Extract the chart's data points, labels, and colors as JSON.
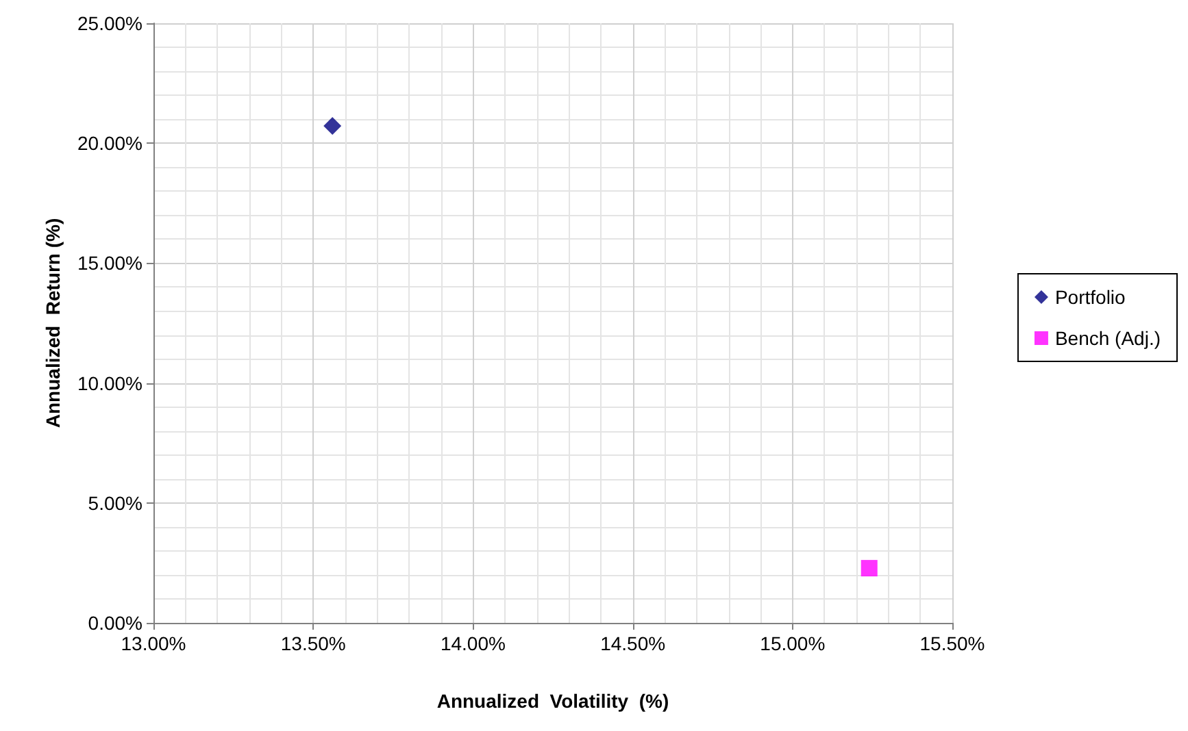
{
  "chart_data": {
    "type": "scatter",
    "xlabel": "Annualized  Volatility  (%)",
    "ylabel": "Annualized  Return (%)",
    "series": [
      {
        "name": "Portfolio",
        "color": "#000080",
        "marker": "diamond",
        "x": [
          13.56
        ],
        "values": [
          20.72
        ]
      },
      {
        "name": "Bench (Adj.)",
        "color": "#ff00ff",
        "marker": "square",
        "x": [
          15.24
        ],
        "values": [
          2.28
        ]
      }
    ],
    "xlim": [
      13,
      15.5
    ],
    "xticks": [
      {
        "value": 13,
        "label": "13.00%"
      },
      {
        "value": 13.5,
        "label": "13.50%"
      },
      {
        "value": 14,
        "label": "14.00%"
      },
      {
        "value": 14.5,
        "label": "14.50%"
      },
      {
        "value": 15,
        "label": "15.00%"
      },
      {
        "value": 15.5,
        "label": "15.50%"
      }
    ],
    "ylim": [
      0,
      25
    ],
    "yticks": [
      {
        "value": 0,
        "label": "0.00%"
      },
      {
        "value": 5,
        "label": "5.00%"
      },
      {
        "value": 10,
        "label": "10.00%"
      },
      {
        "value": 15,
        "label": "15.00%"
      },
      {
        "value": 20,
        "label": "20.00%"
      },
      {
        "value": 25,
        "label": "25.00%"
      }
    ],
    "grid": true,
    "legend": "right"
  }
}
